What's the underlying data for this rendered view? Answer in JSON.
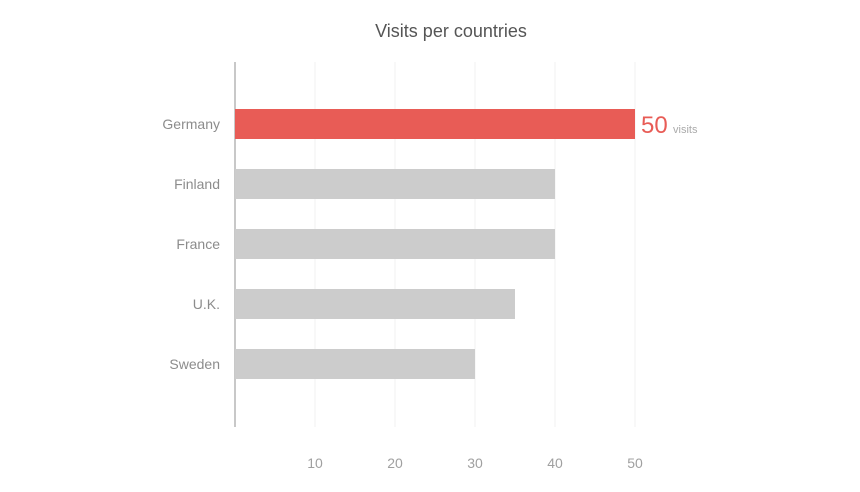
{
  "chart_data": {
    "type": "bar",
    "orientation": "horizontal",
    "title": "Visits per countries",
    "categories": [
      "Germany",
      "Finland",
      "France",
      "U.K.",
      "Sweden"
    ],
    "values": [
      50,
      40,
      40,
      35,
      30
    ],
    "xlim": [
      0,
      50
    ],
    "x_ticks": [
      10,
      20,
      30,
      40,
      50
    ],
    "grid": true,
    "highlight": {
      "category": "Germany",
      "value_label": "50",
      "unit_label": "visits"
    },
    "colors": {
      "highlight": "#e85c56",
      "default": "#cccccc",
      "grid": "#f0f0f0",
      "axis": "#c8c8c8"
    }
  }
}
